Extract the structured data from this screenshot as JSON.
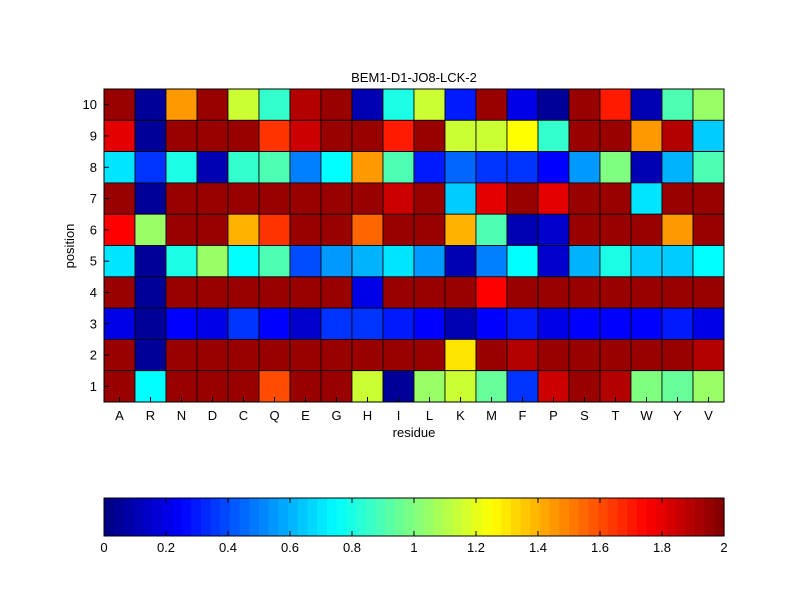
{
  "chart_data": [
    {
      "type": "heatmap",
      "title": "BEM1-D1-JO8-LCK-2",
      "xlabel": "residue",
      "ylabel": "position",
      "x_categories": [
        "A",
        "R",
        "N",
        "D",
        "C",
        "Q",
        "E",
        "G",
        "H",
        "I",
        "L",
        "K",
        "M",
        "F",
        "P",
        "S",
        "T",
        "W",
        "Y",
        "V"
      ],
      "y_categories": [
        "10",
        "9",
        "8",
        "7",
        "6",
        "5",
        "4",
        "3",
        "2",
        "1"
      ],
      "values": [
        [
          1.95,
          0.05,
          1.45,
          1.95,
          1.15,
          0.85,
          1.9,
          1.95,
          0.1,
          0.8,
          1.15,
          0.3,
          1.95,
          0.2,
          0.05,
          1.95,
          1.7,
          0.1,
          0.9,
          1.05
        ],
        [
          1.8,
          0.05,
          1.95,
          1.95,
          1.95,
          1.65,
          1.85,
          1.95,
          1.95,
          1.7,
          1.95,
          1.15,
          1.15,
          1.25,
          0.85,
          1.95,
          1.95,
          1.45,
          1.9,
          0.65
        ],
        [
          0.7,
          0.35,
          0.8,
          0.1,
          0.85,
          0.9,
          0.5,
          0.75,
          1.45,
          0.9,
          0.3,
          0.45,
          0.35,
          0.35,
          0.25,
          0.55,
          1.0,
          0.1,
          0.6,
          0.9
        ],
        [
          1.95,
          0.05,
          1.95,
          1.95,
          1.95,
          1.95,
          1.95,
          1.95,
          1.95,
          1.85,
          1.95,
          0.65,
          1.8,
          1.95,
          1.8,
          1.95,
          1.95,
          0.7,
          1.95,
          1.95
        ],
        [
          1.75,
          1.05,
          1.95,
          1.95,
          1.4,
          1.65,
          1.95,
          1.95,
          1.55,
          1.95,
          1.95,
          1.4,
          0.9,
          0.1,
          0.15,
          1.95,
          1.95,
          1.95,
          1.45,
          1.95
        ],
        [
          0.7,
          0.05,
          0.8,
          1.05,
          0.75,
          0.9,
          0.4,
          0.55,
          0.6,
          0.7,
          0.55,
          0.1,
          0.5,
          0.75,
          0.15,
          0.6,
          0.8,
          0.65,
          0.65,
          0.75
        ],
        [
          1.95,
          0.05,
          1.95,
          1.95,
          1.95,
          1.95,
          1.95,
          1.95,
          0.2,
          1.95,
          1.95,
          1.95,
          1.75,
          1.95,
          1.95,
          1.95,
          1.95,
          1.95,
          1.95,
          1.95
        ],
        [
          0.2,
          0.05,
          0.25,
          0.2,
          0.35,
          0.25,
          0.15,
          0.35,
          0.35,
          0.3,
          0.25,
          0.1,
          0.25,
          0.3,
          0.2,
          0.25,
          0.25,
          0.25,
          0.3,
          0.2
        ],
        [
          1.95,
          0.05,
          1.95,
          1.95,
          1.95,
          1.95,
          1.95,
          1.95,
          1.95,
          1.95,
          1.95,
          1.3,
          1.95,
          1.9,
          1.95,
          1.95,
          1.95,
          1.95,
          1.95,
          1.9
        ],
        [
          1.95,
          0.75,
          1.95,
          1.95,
          1.95,
          1.6,
          1.95,
          1.95,
          1.15,
          0.05,
          1.05,
          1.15,
          0.95,
          0.35,
          1.85,
          1.95,
          1.9,
          1.0,
          0.95,
          1.05
        ]
      ],
      "colorbar": {
        "colormap": "jet",
        "range": [
          0,
          2
        ],
        "ticks": [
          0,
          0.2,
          0.4,
          0.6,
          0.8,
          1,
          1.2,
          1.4,
          1.6,
          1.8,
          2
        ],
        "tick_labels": [
          "0",
          "0.2",
          "0.4",
          "0.6",
          "0.8",
          "1",
          "1.2",
          "1.4",
          "1.6",
          "1.8",
          "2"
        ],
        "orientation": "horizontal",
        "placement": "bottom"
      },
      "grid": false
    }
  ]
}
